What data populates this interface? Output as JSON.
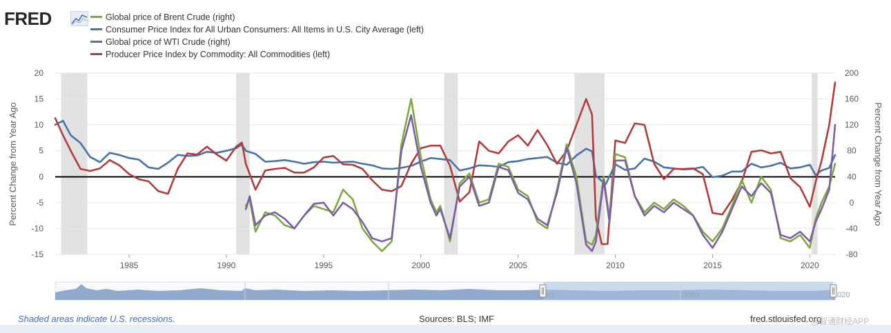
{
  "header": {
    "logo_text": "FRED",
    "logo_icon": "line-graph-icon"
  },
  "legend": [
    {
      "label": "Global price of Brent Crude (right)",
      "color": "#7ea842"
    },
    {
      "label": "Consumer Price Index for All Urban Consumers: All Items in U.S. City Average (left)",
      "color": "#4572a7"
    },
    {
      "label": "Global price of WTI Crude (right)",
      "color": "#7c5ea4"
    },
    {
      "label": "Producer Price Index by Commodity: All Commodities (left)",
      "color": "#b13c3c"
    }
  ],
  "footer": {
    "recession_note": "Shaded areas indicate U.S. recessions.",
    "sources": "Sources: BLS; IMF",
    "site": "fred.stlouisfed.org",
    "watermark": "@智通财经APP"
  },
  "chart_data": {
    "type": "line",
    "xlim": [
      1981.2,
      2021.3
    ],
    "x_ticks": [
      1985,
      1990,
      1995,
      2000,
      2005,
      2010,
      2015,
      2020
    ],
    "left_axis": {
      "label": "Percent Change from Year Ago",
      "range": [
        -15,
        20
      ],
      "ticks": [
        20,
        15,
        10,
        5,
        0,
        -5,
        -10,
        -15
      ]
    },
    "right_axis": {
      "label": "Percent Change from Year Ago",
      "range": [
        -80,
        200
      ],
      "ticks": [
        200,
        160,
        120,
        80,
        40,
        0,
        -40,
        -80
      ]
    },
    "zero_line": true,
    "recessions": [
      [
        1981.5,
        1982.85
      ],
      [
        1990.5,
        1991.2
      ],
      [
        2001.2,
        2001.9
      ],
      [
        2007.9,
        2009.45
      ],
      [
        2020.1,
        2020.4
      ]
    ],
    "series": [
      {
        "name": "Consumer Price Index for All Urban Consumers: All Items in U.S. City Average (left)",
        "axis": "left",
        "color": "#4572a7",
        "x": [
          1981.2,
          1981.6,
          1982.0,
          1982.5,
          1983.0,
          1983.5,
          1984.0,
          1984.5,
          1985.0,
          1985.5,
          1986.0,
          1986.5,
          1987.0,
          1987.5,
          1988.0,
          1988.5,
          1989.0,
          1989.5,
          1990.0,
          1990.5,
          1990.8,
          1991.0,
          1991.5,
          1992.0,
          1992.5,
          1993.0,
          1993.5,
          1994.0,
          1994.5,
          1995.0,
          1995.5,
          1996.0,
          1996.5,
          1997.0,
          1997.5,
          1998.0,
          1998.5,
          1999.0,
          1999.5,
          2000.0,
          2000.5,
          2001.0,
          2001.5,
          2002.0,
          2002.5,
          2003.0,
          2003.5,
          2004.0,
          2004.5,
          2005.0,
          2005.5,
          2006.0,
          2006.5,
          2007.0,
          2007.5,
          2008.0,
          2008.5,
          2008.8,
          2009.0,
          2009.5,
          2010.0,
          2010.5,
          2011.0,
          2011.5,
          2012.0,
          2012.5,
          2013.0,
          2013.5,
          2014.0,
          2014.5,
          2015.0,
          2015.5,
          2016.0,
          2016.5,
          2017.0,
          2017.5,
          2018.0,
          2018.5,
          2019.0,
          2019.5,
          2020.0,
          2020.3,
          2020.6,
          2021.0,
          2021.3
        ],
        "values": [
          10.0,
          10.8,
          8.0,
          6.5,
          3.8,
          2.8,
          4.6,
          4.2,
          3.6,
          3.3,
          1.8,
          1.5,
          2.7,
          4.2,
          4.0,
          4.1,
          4.8,
          4.6,
          5.0,
          5.5,
          6.2,
          5.0,
          4.4,
          2.9,
          3.0,
          3.2,
          2.9,
          2.5,
          2.8,
          2.9,
          2.7,
          2.8,
          2.9,
          2.5,
          2.2,
          1.6,
          1.5,
          1.7,
          2.1,
          2.9,
          3.6,
          3.4,
          3.2,
          1.2,
          1.6,
          2.2,
          2.1,
          1.9,
          2.8,
          3.0,
          3.4,
          3.6,
          3.8,
          2.7,
          2.3,
          4.1,
          5.4,
          4.9,
          0.2,
          -1.5,
          2.4,
          1.3,
          1.6,
          3.5,
          2.9,
          1.8,
          1.6,
          1.4,
          1.5,
          1.9,
          -0.1,
          0.2,
          1.0,
          1.0,
          2.5,
          1.8,
          2.1,
          2.7,
          1.6,
          1.8,
          2.3,
          0.3,
          1.2,
          1.7,
          4.2
        ]
      },
      {
        "name": "Producer Price Index by Commodity: All Commodities (left)",
        "axis": "left",
        "color": "#b13c3c",
        "x": [
          1981.2,
          1981.6,
          1982.0,
          1982.5,
          1983.0,
          1983.5,
          1984.0,
          1984.5,
          1985.0,
          1985.5,
          1986.0,
          1986.5,
          1987.0,
          1987.5,
          1988.0,
          1988.5,
          1989.0,
          1989.5,
          1990.0,
          1990.5,
          1990.8,
          1991.0,
          1991.5,
          1992.0,
          1992.5,
          1993.0,
          1993.5,
          1994.0,
          1994.5,
          1995.0,
          1995.5,
          1996.0,
          1996.5,
          1997.0,
          1997.5,
          1998.0,
          1998.5,
          1999.0,
          1999.5,
          2000.0,
          2000.5,
          2001.0,
          2001.5,
          2002.0,
          2002.5,
          2003.0,
          2003.5,
          2004.0,
          2004.5,
          2005.0,
          2005.5,
          2006.0,
          2006.5,
          2007.0,
          2007.5,
          2008.0,
          2008.5,
          2008.8,
          2009.0,
          2009.3,
          2009.6,
          2010.0,
          2010.5,
          2011.0,
          2011.5,
          2012.0,
          2012.5,
          2013.0,
          2013.5,
          2014.0,
          2014.5,
          2015.0,
          2015.5,
          2016.0,
          2016.5,
          2017.0,
          2017.5,
          2018.0,
          2018.5,
          2019.0,
          2019.5,
          2020.0,
          2020.3,
          2020.6,
          2021.0,
          2021.3
        ],
        "values": [
          11.3,
          8.0,
          5.0,
          1.5,
          1.1,
          1.6,
          3.2,
          2.2,
          0.5,
          -0.5,
          -0.9,
          -2.8,
          -3.3,
          1.5,
          4.5,
          4.3,
          5.8,
          4.3,
          3.1,
          5.8,
          6.6,
          2.5,
          -2.5,
          1.2,
          1.5,
          1.7,
          0.8,
          0.8,
          1.8,
          3.7,
          4.0,
          2.4,
          2.3,
          1.5,
          -0.7,
          -2.5,
          -2.8,
          -1.8,
          2.5,
          5.5,
          6.0,
          6.0,
          2.1,
          -4.8,
          -3.0,
          6.8,
          5.0,
          4.5,
          6.8,
          8.0,
          6.0,
          9.0,
          6.1,
          2.5,
          5.0,
          10.0,
          15.0,
          12.0,
          -8.0,
          -13.0,
          -13.0,
          7.0,
          6.5,
          10.3,
          10.0,
          2.5,
          -0.5,
          1.5,
          1.5,
          1.6,
          0.5,
          -7.0,
          -7.3,
          -4.5,
          -1.0,
          4.8,
          5.1,
          4.5,
          4.8,
          -0.3,
          -2.0,
          -5.8,
          -1.0,
          3.0,
          10.0,
          18.2
        ]
      },
      {
        "name": "Global price of Brent Crude (right)",
        "axis": "right",
        "color": "#7ea842",
        "x": [
          1991.0,
          1991.2,
          1991.5,
          1992.0,
          1992.5,
          1993.0,
          1993.5,
          1994.0,
          1994.5,
          1995.0,
          1995.5,
          1996.0,
          1996.5,
          1997.0,
          1997.5,
          1998.0,
          1998.5,
          1999.0,
          1999.5,
          2000.0,
          2000.5,
          2000.8,
          2001.0,
          2001.5,
          2002.0,
          2002.5,
          2003.0,
          2003.5,
          2004.0,
          2004.5,
          2005.0,
          2005.5,
          2006.0,
          2006.5,
          2007.0,
          2007.5,
          2008.0,
          2008.5,
          2008.8,
          2009.0,
          2009.4,
          2009.7,
          2010.0,
          2010.5,
          2011.0,
          2011.5,
          2012.0,
          2012.5,
          2013.0,
          2013.5,
          2014.0,
          2014.5,
          2015.0,
          2015.5,
          2016.0,
          2016.5,
          2017.0,
          2017.5,
          2018.0,
          2018.5,
          2019.0,
          2019.5,
          2020.0,
          2020.3,
          2020.6,
          2021.0,
          2021.3
        ],
        "values": [
          -5,
          5,
          -45,
          -15,
          -20,
          -35,
          -40,
          -20,
          -5,
          -10,
          -15,
          20,
          5,
          -40,
          -60,
          -75,
          -60,
          90,
          160,
          70,
          5,
          -15,
          -5,
          -60,
          30,
          45,
          0,
          5,
          60,
          55,
          20,
          10,
          -30,
          -40,
          20,
          90,
          40,
          -60,
          -65,
          -50,
          40,
          -25,
          75,
          70,
          10,
          -15,
          0,
          -10,
          5,
          -5,
          -20,
          -45,
          -60,
          -40,
          -5,
          35,
          0,
          40,
          20,
          -55,
          -60,
          -50,
          -70,
          -25,
          0,
          25,
          60
        ]
      },
      {
        "name": "Global price of WTI Crude (right)",
        "axis": "right",
        "color": "#7c5ea4",
        "x": [
          1991.0,
          1991.2,
          1991.5,
          1992.0,
          1992.5,
          1993.0,
          1993.5,
          1994.0,
          1994.5,
          1995.0,
          1995.5,
          1996.0,
          1996.5,
          1997.0,
          1997.5,
          1998.0,
          1998.5,
          1999.0,
          1999.5,
          2000.0,
          2000.5,
          2000.8,
          2001.0,
          2001.5,
          2002.0,
          2002.5,
          2003.0,
          2003.5,
          2004.0,
          2004.5,
          2005.0,
          2005.5,
          2006.0,
          2006.5,
          2007.0,
          2007.5,
          2008.0,
          2008.5,
          2008.8,
          2009.0,
          2009.4,
          2009.7,
          2010.0,
          2010.5,
          2011.0,
          2011.5,
          2012.0,
          2012.5,
          2013.0,
          2013.5,
          2014.0,
          2014.5,
          2015.0,
          2015.5,
          2016.0,
          2016.5,
          2017.0,
          2017.5,
          2018.0,
          2018.5,
          2019.0,
          2019.5,
          2020.0,
          2020.3,
          2020.6,
          2021.0,
          2021.3
        ],
        "values": [
          -10,
          10,
          -35,
          -20,
          -15,
          -25,
          -40,
          -20,
          -2,
          0,
          -20,
          0,
          -10,
          -30,
          -55,
          -60,
          -55,
          80,
          135,
          55,
          0,
          -20,
          -10,
          -55,
          25,
          40,
          -5,
          0,
          55,
          50,
          15,
          5,
          -25,
          -35,
          15,
          85,
          30,
          -65,
          -75,
          -60,
          35,
          -30,
          65,
          65,
          10,
          -20,
          -5,
          -15,
          0,
          -10,
          -20,
          -50,
          -70,
          -45,
          -10,
          25,
          10,
          30,
          15,
          -50,
          -55,
          -45,
          -60,
          -30,
          -10,
          20,
          120
        ]
      }
    ]
  }
}
